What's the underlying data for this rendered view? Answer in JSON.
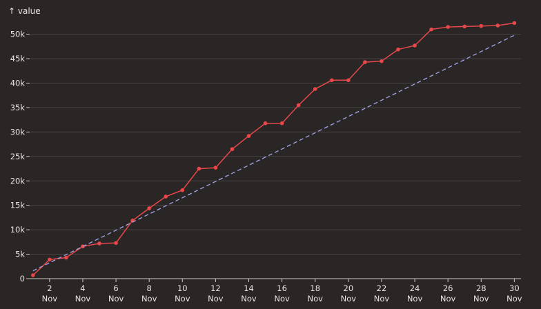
{
  "chart_data": {
    "type": "line",
    "ylabel": "↑ value",
    "ylim": [
      0,
      52500
    ],
    "xlim": [
      1,
      30
    ],
    "grid": "horizontal",
    "colors": {
      "background": "#2a2626",
      "actual": "#e8484a",
      "trend": "#a3a6e8",
      "grid": "#4a4444",
      "text": "#e8e4e0"
    },
    "y_ticks": [
      {
        "value": 0,
        "label": "0"
      },
      {
        "value": 5000,
        "label": "5k"
      },
      {
        "value": 10000,
        "label": "10k"
      },
      {
        "value": 15000,
        "label": "15k"
      },
      {
        "value": 20000,
        "label": "20k"
      },
      {
        "value": 25000,
        "label": "25k"
      },
      {
        "value": 30000,
        "label": "30k"
      },
      {
        "value": 35000,
        "label": "35k"
      },
      {
        "value": 40000,
        "label": "40k"
      },
      {
        "value": 45000,
        "label": "45k"
      },
      {
        "value": 50000,
        "label": "50k"
      }
    ],
    "x_ticks": [
      {
        "value": 2,
        "day": "2",
        "month": "Nov"
      },
      {
        "value": 4,
        "day": "4",
        "month": "Nov"
      },
      {
        "value": 6,
        "day": "6",
        "month": "Nov"
      },
      {
        "value": 8,
        "day": "8",
        "month": "Nov"
      },
      {
        "value": 10,
        "day": "10",
        "month": "Nov"
      },
      {
        "value": 12,
        "day": "12",
        "month": "Nov"
      },
      {
        "value": 14,
        "day": "14",
        "month": "Nov"
      },
      {
        "value": 16,
        "day": "16",
        "month": "Nov"
      },
      {
        "value": 18,
        "day": "18",
        "month": "Nov"
      },
      {
        "value": 20,
        "day": "20",
        "month": "Nov"
      },
      {
        "value": 22,
        "day": "22",
        "month": "Nov"
      },
      {
        "value": 24,
        "day": "24",
        "month": "Nov"
      },
      {
        "value": 26,
        "day": "26",
        "month": "Nov"
      },
      {
        "value": 28,
        "day": "28",
        "month": "Nov"
      },
      {
        "value": 30,
        "day": "30",
        "month": "Nov"
      }
    ],
    "series": [
      {
        "style": "solid-with-markers",
        "color": "#e8484a",
        "points": [
          {
            "x": 1,
            "y": 700
          },
          {
            "x": 2,
            "y": 3900
          },
          {
            "x": 3,
            "y": 4300
          },
          {
            "x": 4,
            "y": 6600
          },
          {
            "x": 5,
            "y": 7200
          },
          {
            "x": 6,
            "y": 7300
          },
          {
            "x": 7,
            "y": 11900
          },
          {
            "x": 8,
            "y": 14400
          },
          {
            "x": 9,
            "y": 16800
          },
          {
            "x": 10,
            "y": 18100
          },
          {
            "x": 11,
            "y": 22500
          },
          {
            "x": 12,
            "y": 22700
          },
          {
            "x": 13,
            "y": 26500
          },
          {
            "x": 14,
            "y": 29200
          },
          {
            "x": 15,
            "y": 31800
          },
          {
            "x": 16,
            "y": 31800
          },
          {
            "x": 17,
            "y": 35500
          },
          {
            "x": 18,
            "y": 38800
          },
          {
            "x": 19,
            "y": 40600
          },
          {
            "x": 20,
            "y": 40600
          },
          {
            "x": 21,
            "y": 44300
          },
          {
            "x": 22,
            "y": 44500
          },
          {
            "x": 23,
            "y": 46900
          },
          {
            "x": 24,
            "y": 47700
          },
          {
            "x": 25,
            "y": 51000
          },
          {
            "x": 26,
            "y": 51500
          },
          {
            "x": 27,
            "y": 51600
          },
          {
            "x": 28,
            "y": 51700
          },
          {
            "x": 29,
            "y": 51800
          },
          {
            "x": 30,
            "y": 52300
          }
        ]
      },
      {
        "style": "dashed",
        "color": "#a3a6e8",
        "points": [
          {
            "x": 1,
            "y": 1600
          },
          {
            "x": 30,
            "y": 49800
          }
        ]
      }
    ]
  }
}
